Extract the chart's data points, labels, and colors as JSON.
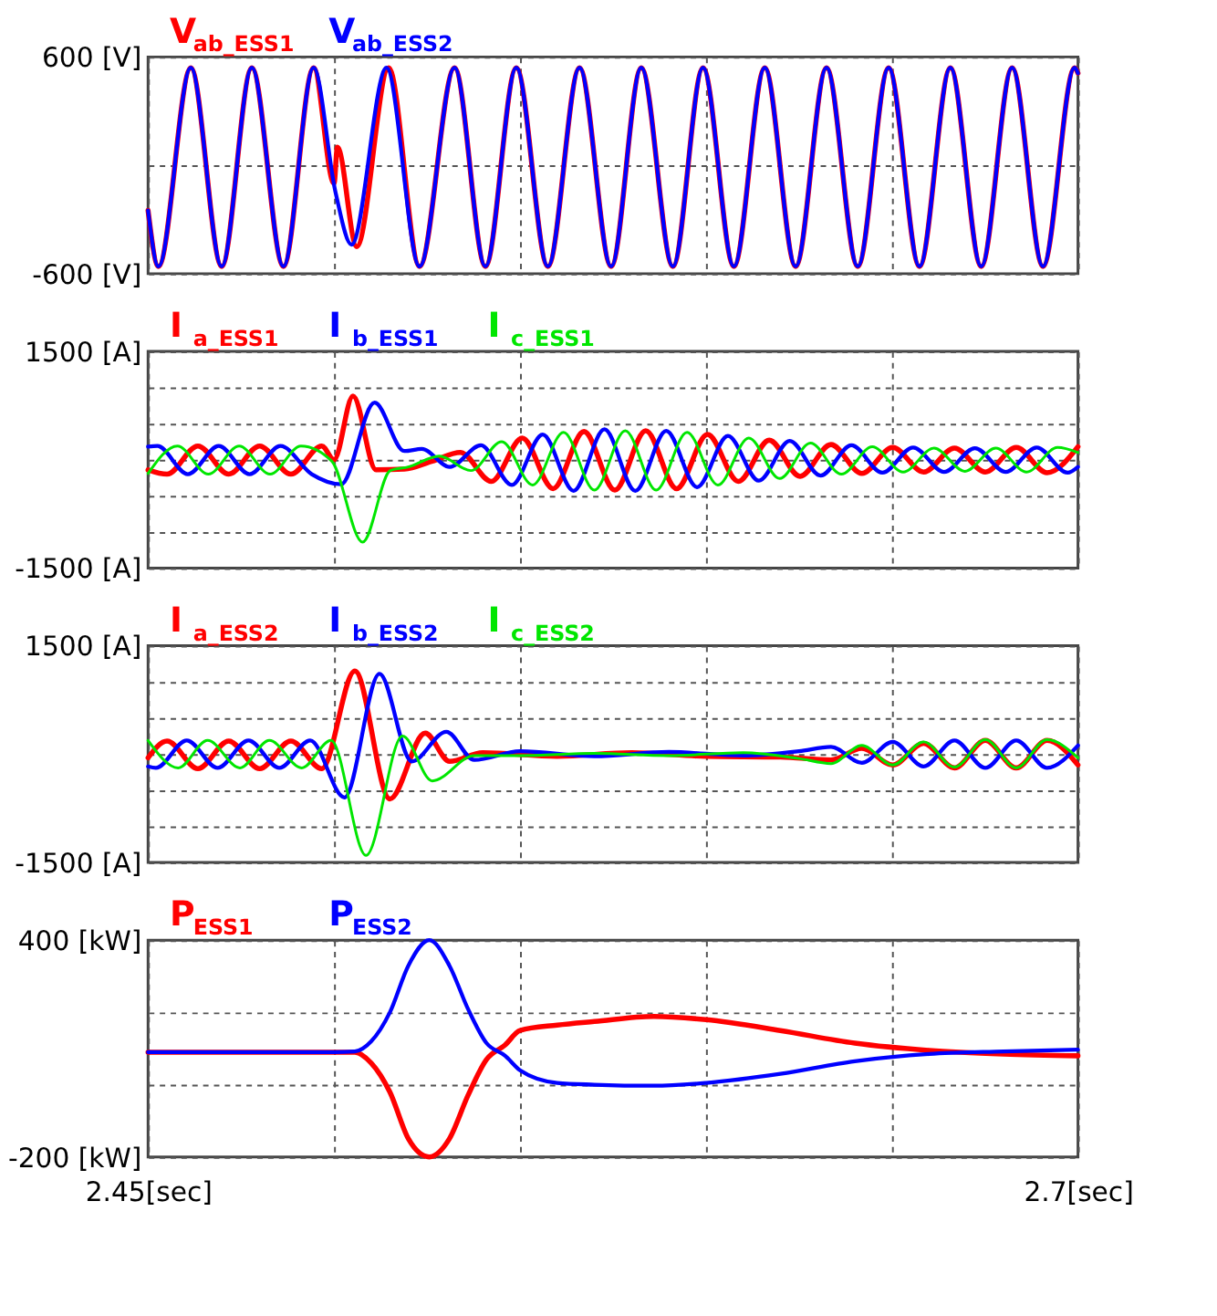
{
  "chart_data": [
    {
      "type": "line",
      "grid": true,
      "tick_labels": "y",
      "xlim": [
        2.45,
        2.7
      ],
      "xticks": [
        {
          "value": 2.45,
          "label": null
        },
        {
          "value": 2.5,
          "label": null
        },
        {
          "value": 2.55,
          "label": null
        },
        {
          "value": 2.6,
          "label": null
        },
        {
          "value": 2.65,
          "label": null
        },
        {
          "value": 2.7,
          "label": null
        }
      ],
      "ylim": [
        -600,
        600
      ],
      "yticks": [
        {
          "value": -600,
          "label": "-600 [V]"
        },
        {
          "value": 0,
          "label": null
        },
        {
          "value": 600,
          "label": "600 [V]"
        }
      ],
      "series": [
        {
          "name": "V$_{ab_ESS1}$",
          "color": "#ff0000",
          "x": [
            2.45,
            2.4528,
            2.4615,
            2.4698,
            2.4779,
            2.4864,
            2.4945,
            2.5,
            2.5009,
            2.5061,
            2.5147,
            2.523,
            2.5324,
            2.5407,
            2.549,
            2.5575,
            2.566,
            2.5745,
            2.5826,
            2.5911,
            2.5992,
            2.6075,
            2.6158,
            2.6241,
            2.6324,
            2.6408,
            2.6491,
            2.6574,
            2.6657,
            2.674,
            2.6823,
            2.6906,
            2.6991,
            2.7
          ],
          "values": [
            -250,
            -560,
            540,
            -560,
            540,
            -560,
            540,
            -100,
            100,
            -450,
            540,
            -560,
            540,
            -560,
            540,
            -560,
            540,
            -560,
            540,
            -560,
            540,
            -560,
            540,
            -560,
            540,
            -560,
            540,
            -560,
            540,
            -560,
            540,
            -560,
            540,
            510
          ]
        },
        {
          "name": "V$_{ab_ESS2}$",
          "color": "#0000ff",
          "x": [
            2.45,
            2.4528,
            2.4615,
            2.4698,
            2.4779,
            2.4864,
            2.4945,
            2.5004,
            2.5047,
            2.5141,
            2.523,
            2.5324,
            2.5407,
            2.549,
            2.5575,
            2.566,
            2.5745,
            2.5826,
            2.5911,
            2.5992,
            2.6075,
            2.6158,
            2.6241,
            2.6324,
            2.6408,
            2.6491,
            2.6574,
            2.6657,
            2.674,
            2.6823,
            2.6906,
            2.6991,
            2.7
          ],
          "values": [
            -250,
            -560,
            540,
            -560,
            540,
            -560,
            540,
            -150,
            -440,
            540,
            -560,
            540,
            -560,
            540,
            -560,
            540,
            -560,
            540,
            -560,
            540,
            -560,
            540,
            -560,
            540,
            -560,
            540,
            -560,
            540,
            -560,
            540,
            -560,
            540,
            510
          ]
        }
      ]
    },
    {
      "type": "line",
      "grid": true,
      "tick_labels": "y",
      "xlim": [
        2.45,
        2.7
      ],
      "xticks": [
        {
          "value": 2.45,
          "label": null
        },
        {
          "value": 2.5,
          "label": null
        },
        {
          "value": 2.55,
          "label": null
        },
        {
          "value": 2.6,
          "label": null
        },
        {
          "value": 2.65,
          "label": null
        },
        {
          "value": 2.7,
          "label": null
        }
      ],
      "ylim": [
        -1500,
        1500
      ],
      "yticks": [
        {
          "value": -1500,
          "label": "-1500 [A]"
        },
        {
          "value": -1000,
          "label": null
        },
        {
          "value": -500,
          "label": null
        },
        {
          "value": 0,
          "label": null
        },
        {
          "value": 500,
          "label": null
        },
        {
          "value": 1000,
          "label": null
        },
        {
          "value": 1500,
          "label": "1500 [A]"
        }
      ],
      "series": [
        {
          "name": "I$_{a_ESS1}$",
          "color": "#ff0000",
          "x": [
            2.45,
            2.4551,
            2.4634,
            2.4717,
            2.48,
            2.4884,
            2.4967,
            2.5,
            2.5051,
            2.5113,
            2.5189,
            2.5264,
            2.534,
            2.5423,
            2.5506,
            2.5589,
            2.5672,
            2.5755,
            2.5838,
            2.5921,
            2.6004,
            2.6087,
            2.617,
            2.6253,
            2.6336,
            2.6419,
            2.6502,
            2.6585,
            2.6668,
            2.6751,
            2.6834,
            2.6917,
            2.7
          ],
          "values": [
            -140,
            -200,
            190,
            -200,
            190,
            -200,
            190,
            0,
            880,
            -140,
            -130,
            -20,
            100,
            -300,
            300,
            -400,
            390,
            -420,
            400,
            -400,
            350,
            -300,
            270,
            -230,
            210,
            -190,
            170,
            -170,
            160,
            -170,
            170,
            -180,
            180
          ]
        },
        {
          "name": "I$_{b_ESS1}$",
          "color": "#0000ff",
          "x": [
            2.45,
            2.4525,
            2.4607,
            2.469,
            2.4773,
            2.4856,
            2.494,
            2.5019,
            2.5109,
            2.5189,
            2.5236,
            2.5311,
            2.5395,
            2.5478,
            2.5561,
            2.5644,
            2.5727,
            2.581,
            2.5893,
            2.5976,
            2.6059,
            2.6142,
            2.6225,
            2.6308,
            2.6391,
            2.6474,
            2.6557,
            2.664,
            2.6723,
            2.6806,
            2.6889,
            2.6972,
            2.7
          ],
          "values": [
            180,
            190,
            -200,
            190,
            -200,
            190,
            -200,
            -340,
            790,
            120,
            150,
            -100,
            200,
            -350,
            350,
            -430,
            420,
            -430,
            400,
            -380,
            330,
            -290,
            260,
            -220,
            200,
            -180,
            170,
            -170,
            160,
            -170,
            170,
            -180,
            -100
          ]
        },
        {
          "name": "I$_{c_ESS1}$",
          "color": "#00e600",
          "x": [
            2.45,
            2.4579,
            2.4662,
            2.4745,
            2.4828,
            2.4911,
            2.4994,
            2.5077,
            2.5151,
            2.52,
            2.5283,
            2.5368,
            2.5451,
            2.5534,
            2.5617,
            2.57,
            2.5783,
            2.5866,
            2.5949,
            2.6032,
            2.6115,
            2.6198,
            2.6281,
            2.6364,
            2.6447,
            2.653,
            2.6613,
            2.6696,
            2.6779,
            2.6862,
            2.6945,
            2.7
          ],
          "values": [
            -190,
            190,
            -200,
            190,
            -200,
            190,
            -20,
            -1140,
            -150,
            -100,
            50,
            -150,
            250,
            -350,
            380,
            -420,
            400,
            -420,
            380,
            -350,
            300,
            -260,
            230,
            -200,
            180,
            -170,
            160,
            -160,
            160,
            -170,
            170,
            100
          ]
        }
      ]
    },
    {
      "type": "line",
      "grid": true,
      "tick_labels": "y",
      "xlim": [
        2.45,
        2.7
      ],
      "xticks": [
        {
          "value": 2.45,
          "label": null
        },
        {
          "value": 2.5,
          "label": null
        },
        {
          "value": 2.55,
          "label": null
        },
        {
          "value": 2.6,
          "label": null
        },
        {
          "value": 2.65,
          "label": null
        },
        {
          "value": 2.7,
          "label": null
        }
      ],
      "ylim": [
        -1500,
        1500
      ],
      "yticks": [
        {
          "value": -1500,
          "label": "-1500 [A]"
        },
        {
          "value": -1000,
          "label": null
        },
        {
          "value": -500,
          "label": null
        },
        {
          "value": 0,
          "label": null
        },
        {
          "value": 500,
          "label": null
        },
        {
          "value": 1000,
          "label": null
        },
        {
          "value": 1500,
          "label": "1500 [A]"
        }
      ],
      "series": [
        {
          "name": "I$_{a_ESS2}$",
          "color": "#ff0000",
          "x": [
            2.45,
            2.4551,
            2.4634,
            2.4717,
            2.48,
            2.4884,
            2.4967,
            2.5056,
            2.515,
            2.5245,
            2.5311,
            2.54,
            2.56,
            2.58,
            2.6,
            2.62,
            2.6336,
            2.6419,
            2.6502,
            2.6585,
            2.6668,
            2.6751,
            2.6834,
            2.6917,
            2.7
          ],
          "values": [
            -50,
            180,
            -200,
            180,
            -200,
            180,
            -200,
            1150,
            -620,
            290,
            -100,
            20,
            -30,
            20,
            -30,
            -40,
            -80,
            80,
            -150,
            150,
            -190,
            190,
            -190,
            190,
            -150
          ]
        },
        {
          "name": "I$_{b_ESS2}$",
          "color": "#0000ff",
          "x": [
            2.45,
            2.4521,
            2.4604,
            2.4687,
            2.477,
            2.4853,
            2.4936,
            2.5028,
            2.5122,
            2.5209,
            2.5302,
            2.5377,
            2.55,
            2.57,
            2.59,
            2.61,
            2.625,
            2.6336,
            2.6419,
            2.6502,
            2.6585,
            2.6668,
            2.6751,
            2.6834,
            2.6917,
            2.7
          ],
          "values": [
            -170,
            -190,
            190,
            -190,
            190,
            -190,
            190,
            -600,
            1110,
            -100,
            310,
            -80,
            40,
            -30,
            30,
            -20,
            40,
            100,
            -120,
            170,
            -170,
            190,
            -190,
            190,
            -190,
            120
          ]
        },
        {
          "name": "I$_{c_ESS2}$",
          "color": "#00e600",
          "x": [
            2.45,
            2.4581,
            2.466,
            2.4747,
            2.4826,
            2.4913,
            2.4992,
            2.5086,
            2.5184,
            2.5264,
            2.5377,
            2.55,
            2.57,
            2.59,
            2.61,
            2.625,
            2.6336,
            2.6419,
            2.6502,
            2.6585,
            2.6668,
            2.6751,
            2.6834,
            2.6917,
            2.7
          ],
          "values": [
            190,
            -190,
            190,
            -190,
            190,
            -190,
            190,
            -1400,
            250,
            -370,
            -20,
            -20,
            10,
            -20,
            20,
            -60,
            -130,
            120,
            -150,
            170,
            -180,
            200,
            -190,
            200,
            -50
          ]
        }
      ]
    },
    {
      "type": "line",
      "grid": true,
      "xlim": [
        2.45,
        2.7
      ],
      "xticks": [
        {
          "value": 2.45,
          "label": "2.45[sec]"
        },
        {
          "value": 2.5,
          "label": null
        },
        {
          "value": 2.55,
          "label": null
        },
        {
          "value": 2.6,
          "label": null
        },
        {
          "value": 2.65,
          "label": null
        },
        {
          "value": 2.7,
          "label": "2.7[sec]"
        }
      ],
      "ylim": [
        -200,
        400
      ],
      "yticks": [
        {
          "value": -200,
          "label": "-200 [kW]"
        },
        {
          "value": 0,
          "label": null
        },
        {
          "value": 200,
          "label": null
        },
        {
          "value": 400,
          "label": "400 [kW]"
        }
      ],
      "x": [
        2.45,
        2.5,
        2.5056,
        2.51,
        2.515,
        2.52,
        2.5256,
        2.531,
        2.536,
        2.541,
        2.546,
        2.55,
        2.56,
        2.57,
        2.586,
        2.6,
        2.62,
        2.64,
        2.66,
        2.68,
        2.7
      ],
      "series": [
        {
          "name": "P$_{ESS1}$",
          "color": "#ff0000",
          "values": [
            90,
            90,
            90,
            60,
            -20,
            -150,
            -200,
            -150,
            -30,
            70,
            110,
            150,
            165,
            175,
            189,
            180,
            150,
            115,
            95,
            85,
            80
          ]
        },
        {
          "name": "P$_{ESS2}$",
          "color": "#0000ff",
          "values": [
            90,
            90,
            92,
            120,
            200,
            330,
            400,
            330,
            210,
            115,
            80,
            40,
            5,
            0,
            -3,
            5,
            30,
            65,
            85,
            92,
            97
          ]
        }
      ]
    }
  ]
}
